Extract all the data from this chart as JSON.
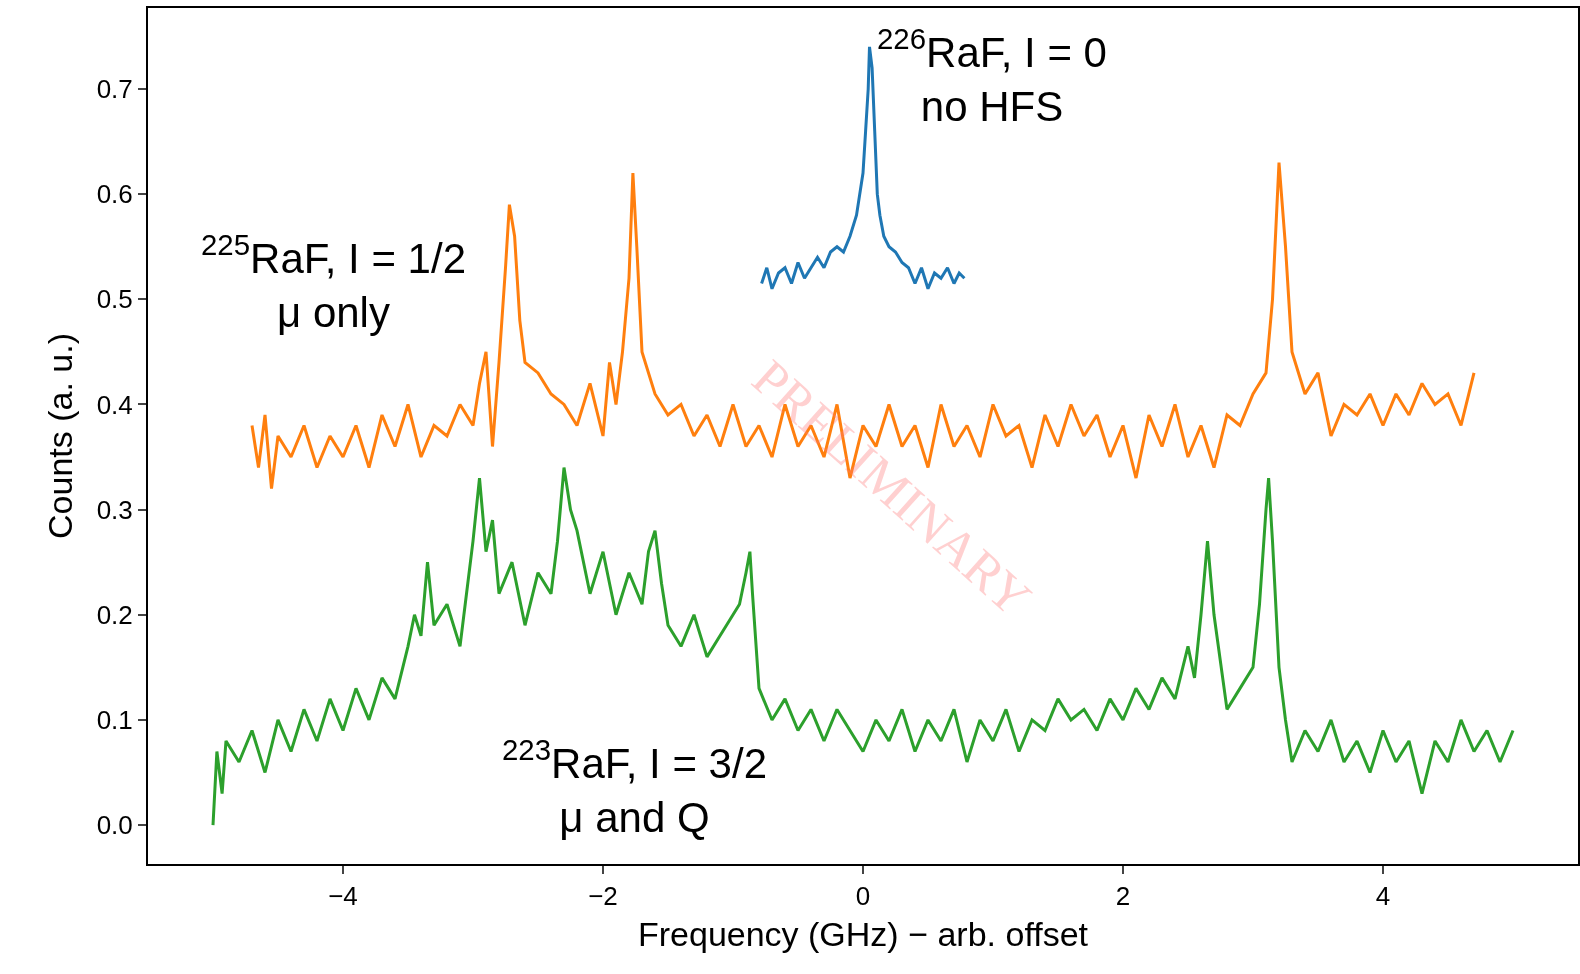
{
  "chart_data": {
    "type": "line",
    "xlabel": "Frequency (GHz) − arb. offset",
    "ylabel": "Counts (a. u.)",
    "xlim": [
      -5.5,
      5.5
    ],
    "ylim": [
      -0.037,
      0.777
    ],
    "xticks": [
      {
        "value": -4,
        "label": "−4"
      },
      {
        "value": -2,
        "label": "−2"
      },
      0,
      2,
      4
    ],
    "yticks": [
      {
        "value": 0,
        "label": "0.0"
      },
      0.1,
      0.2,
      0.3,
      0.4,
      0.5,
      0.6,
      0.7
    ],
    "grid": false,
    "legend": false,
    "annotations": [
      "PRELIMINARY"
    ],
    "series": [
      {
        "name": "$^{226}$RaF, I = 0\nno HFS",
        "color": "#1f77b4",
        "x": [
          -0.78,
          -0.74,
          -0.7,
          -0.65,
          -0.6,
          -0.55,
          -0.5,
          -0.45,
          -0.4,
          -0.35,
          -0.3,
          -0.25,
          -0.2,
          -0.15,
          -0.1,
          -0.05,
          0,
          0.02,
          0.04,
          0.05,
          0.07,
          0.09,
          0.11,
          0.13,
          0.16,
          0.2,
          0.25,
          0.3,
          0.35,
          0.4,
          0.45,
          0.5,
          0.55,
          0.6,
          0.65,
          0.7,
          0.74,
          0.78
        ],
        "values": [
          0.515,
          0.53,
          0.51,
          0.525,
          0.53,
          0.515,
          0.535,
          0.52,
          0.53,
          0.54,
          0.53,
          0.545,
          0.55,
          0.545,
          0.56,
          0.58,
          0.62,
          0.66,
          0.7,
          0.74,
          0.72,
          0.66,
          0.6,
          0.58,
          0.56,
          0.55,
          0.545,
          0.535,
          0.53,
          0.515,
          0.53,
          0.51,
          0.525,
          0.52,
          0.53,
          0.515,
          0.525,
          0.52
        ]
      },
      {
        "name": "$^{225}$RaF, I = 1/2\nμ only",
        "color": "#ff7f0e",
        "x": [
          -4.7,
          -4.65,
          -4.6,
          -4.55,
          -4.5,
          -4.4,
          -4.3,
          -4.2,
          -4.1,
          -4.0,
          -3.9,
          -3.8,
          -3.7,
          -3.6,
          -3.5,
          -3.4,
          -3.3,
          -3.2,
          -3.1,
          -3.0,
          -2.95,
          -2.9,
          -2.85,
          -2.8,
          -2.75,
          -2.72,
          -2.68,
          -2.64,
          -2.6,
          -2.5,
          -2.4,
          -2.3,
          -2.2,
          -2.1,
          -2.0,
          -1.95,
          -1.9,
          -1.85,
          -1.8,
          -1.77,
          -1.74,
          -1.7,
          -1.6,
          -1.5,
          -1.4,
          -1.3,
          -1.2,
          -1.1,
          -1.0,
          -0.9,
          -0.8,
          -0.7,
          -0.6,
          -0.5,
          -0.4,
          -0.3,
          -0.2,
          -0.1,
          0.0,
          0.1,
          0.2,
          0.3,
          0.4,
          0.5,
          0.6,
          0.7,
          0.8,
          0.9,
          1.0,
          1.1,
          1.2,
          1.3,
          1.4,
          1.5,
          1.6,
          1.7,
          1.8,
          1.9,
          2.0,
          2.1,
          2.2,
          2.3,
          2.4,
          2.5,
          2.6,
          2.7,
          2.8,
          2.9,
          3.0,
          3.1,
          3.15,
          3.2,
          3.25,
          3.3,
          3.4,
          3.5,
          3.6,
          3.7,
          3.8,
          3.9,
          4.0,
          4.1,
          4.2,
          4.3,
          4.4,
          4.5,
          4.6,
          4.7
        ],
        "values": [
          0.38,
          0.34,
          0.39,
          0.32,
          0.37,
          0.35,
          0.38,
          0.34,
          0.37,
          0.35,
          0.38,
          0.34,
          0.39,
          0.36,
          0.4,
          0.35,
          0.38,
          0.37,
          0.4,
          0.38,
          0.42,
          0.45,
          0.36,
          0.44,
          0.53,
          0.59,
          0.56,
          0.48,
          0.44,
          0.43,
          0.41,
          0.4,
          0.38,
          0.42,
          0.37,
          0.44,
          0.4,
          0.45,
          0.52,
          0.62,
          0.55,
          0.45,
          0.41,
          0.39,
          0.4,
          0.37,
          0.39,
          0.36,
          0.4,
          0.36,
          0.38,
          0.35,
          0.4,
          0.36,
          0.38,
          0.35,
          0.4,
          0.33,
          0.38,
          0.36,
          0.4,
          0.36,
          0.38,
          0.34,
          0.4,
          0.36,
          0.38,
          0.35,
          0.4,
          0.37,
          0.38,
          0.34,
          0.39,
          0.36,
          0.4,
          0.37,
          0.39,
          0.35,
          0.38,
          0.33,
          0.39,
          0.36,
          0.4,
          0.35,
          0.38,
          0.34,
          0.39,
          0.38,
          0.41,
          0.43,
          0.5,
          0.63,
          0.55,
          0.45,
          0.41,
          0.43,
          0.37,
          0.4,
          0.39,
          0.41,
          0.38,
          0.41,
          0.39,
          0.42,
          0.4,
          0.41,
          0.38,
          0.43
        ]
      },
      {
        "name": "$^{223}$RaF, I = 3/2\nμ and Q",
        "color": "#2ca02c",
        "x": [
          -5.0,
          -4.97,
          -4.93,
          -4.9,
          -4.8,
          -4.7,
          -4.6,
          -4.5,
          -4.4,
          -4.3,
          -4.2,
          -4.1,
          -4.0,
          -3.9,
          -3.8,
          -3.7,
          -3.6,
          -3.5,
          -3.45,
          -3.4,
          -3.35,
          -3.3,
          -3.2,
          -3.1,
          -3.05,
          -3.0,
          -2.95,
          -2.9,
          -2.85,
          -2.8,
          -2.7,
          -2.6,
          -2.5,
          -2.4,
          -2.35,
          -2.3,
          -2.25,
          -2.2,
          -2.1,
          -2.0,
          -1.9,
          -1.8,
          -1.7,
          -1.65,
          -1.6,
          -1.55,
          -1.5,
          -1.4,
          -1.3,
          -1.2,
          -1.1,
          -1.0,
          -0.95,
          -0.9,
          -0.87,
          -0.85,
          -0.8,
          -0.7,
          -0.6,
          -0.5,
          -0.4,
          -0.3,
          -0.2,
          -0.1,
          0.0,
          0.1,
          0.2,
          0.3,
          0.4,
          0.5,
          0.6,
          0.7,
          0.8,
          0.9,
          1.0,
          1.1,
          1.2,
          1.3,
          1.4,
          1.5,
          1.6,
          1.7,
          1.8,
          1.9,
          2.0,
          2.1,
          2.2,
          2.3,
          2.4,
          2.5,
          2.55,
          2.6,
          2.65,
          2.7,
          2.8,
          2.9,
          3.0,
          3.05,
          3.1,
          3.12,
          3.15,
          3.2,
          3.25,
          3.3,
          3.4,
          3.5,
          3.6,
          3.7,
          3.8,
          3.9,
          4.0,
          4.1,
          4.2,
          4.3,
          4.4,
          4.5,
          4.6,
          4.7,
          4.8,
          4.9,
          5.0
        ],
        "values": [
          0.0,
          0.07,
          0.03,
          0.08,
          0.06,
          0.09,
          0.05,
          0.1,
          0.07,
          0.11,
          0.08,
          0.12,
          0.09,
          0.13,
          0.1,
          0.14,
          0.12,
          0.17,
          0.2,
          0.18,
          0.25,
          0.19,
          0.21,
          0.17,
          0.22,
          0.27,
          0.33,
          0.26,
          0.29,
          0.22,
          0.25,
          0.19,
          0.24,
          0.22,
          0.27,
          0.34,
          0.3,
          0.28,
          0.22,
          0.26,
          0.2,
          0.24,
          0.21,
          0.26,
          0.28,
          0.23,
          0.19,
          0.17,
          0.2,
          0.16,
          0.18,
          0.2,
          0.21,
          0.24,
          0.26,
          0.22,
          0.13,
          0.1,
          0.12,
          0.09,
          0.11,
          0.08,
          0.11,
          0.09,
          0.07,
          0.1,
          0.08,
          0.11,
          0.07,
          0.1,
          0.08,
          0.11,
          0.06,
          0.1,
          0.08,
          0.11,
          0.07,
          0.1,
          0.09,
          0.12,
          0.1,
          0.11,
          0.09,
          0.12,
          0.1,
          0.13,
          0.11,
          0.14,
          0.12,
          0.17,
          0.14,
          0.2,
          0.27,
          0.2,
          0.11,
          0.13,
          0.15,
          0.21,
          0.3,
          0.33,
          0.27,
          0.15,
          0.1,
          0.06,
          0.09,
          0.07,
          0.1,
          0.06,
          0.08,
          0.05,
          0.09,
          0.06,
          0.08,
          0.03,
          0.08,
          0.06,
          0.1,
          0.07,
          0.09,
          0.06,
          0.09
        ]
      }
    ]
  }
}
